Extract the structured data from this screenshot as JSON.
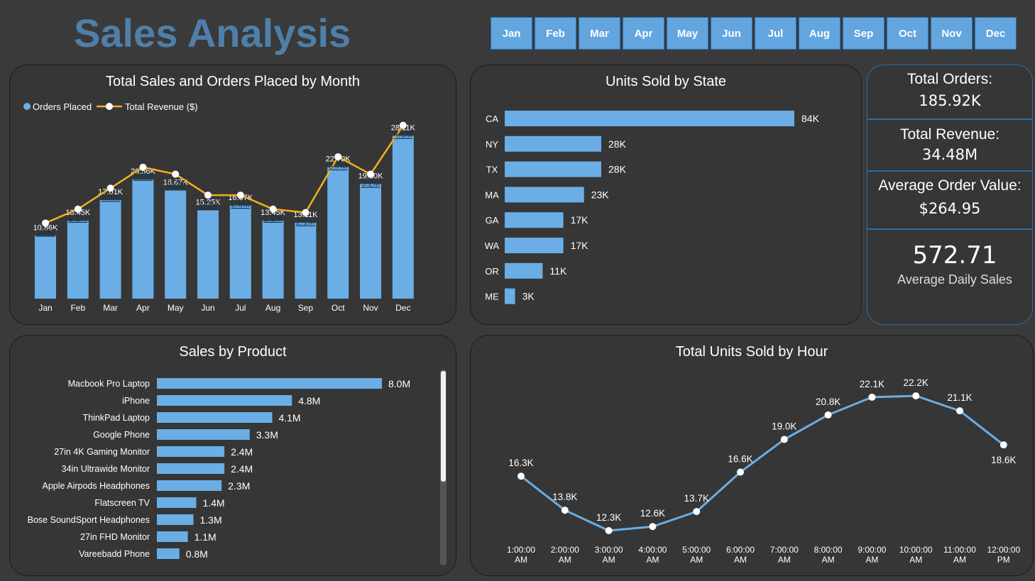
{
  "header": {
    "title": "Sales Analysis",
    "months": [
      "Jan",
      "Feb",
      "Mar",
      "Apr",
      "May",
      "Jun",
      "Jul",
      "Aug",
      "Sep",
      "Oct",
      "Nov",
      "Dec"
    ]
  },
  "colors": {
    "bar": "#6aaee5",
    "line": "#f2b01e",
    "title": "#4f7fa9",
    "hour_line": "#6aaee5"
  },
  "kpis": {
    "total_orders_label": "Total Orders:",
    "total_orders_value": "185.92K",
    "total_revenue_label": "Total Revenue:",
    "total_revenue_value": "34.48M",
    "aov_label": "Average Order Value:",
    "aov_value": "$264.95",
    "daily_value": "572.71",
    "daily_label": "Average Daily Sales"
  },
  "chart_data": [
    {
      "id": "monthly",
      "type": "bar",
      "title": "Total Sales and Orders Placed by Month",
      "legend": [
        "Orders Placed",
        "Total Revenue ($)"
      ],
      "legend_placement": "top-left",
      "categories": [
        "Jan",
        "Feb",
        "Mar",
        "Apr",
        "May",
        "Jun",
        "Jul",
        "Aug",
        "Sep",
        "Oct",
        "Nov",
        "Dec"
      ],
      "series": [
        {
          "name": "Orders Placed",
          "type": "bar",
          "values": [
            10.86,
            13.45,
            17.01,
            20.56,
            18.67,
            15.25,
            16.07,
            13.45,
            13.11,
            22.7,
            19.8,
            28.11
          ],
          "labels": [
            "10.86K",
            "13.45K",
            "17.01K",
            "20.56K",
            "18.67K",
            "15.25K",
            "16.07K",
            "13.45K",
            "13.11K",
            "22.70K",
            "19.80K",
            "28.11K"
          ]
        },
        {
          "name": "Total Revenue ($)",
          "type": "line",
          "values": [
            1.8,
            2.2,
            2.8,
            3.4,
            3.2,
            2.6,
            2.6,
            2.2,
            2.1,
            3.7,
            3.2,
            4.6
          ],
          "labels": [
            "1.8M",
            "2.2M",
            "2.8M",
            "3.4M",
            "3.2M",
            "2.6M",
            "2.6M",
            "2.2M",
            "2.1M",
            "3.7M",
            "3.2M",
            "4.6M"
          ]
        }
      ]
    },
    {
      "id": "state",
      "type": "bar",
      "orientation": "horizontal",
      "title": "Units Sold by State",
      "categories": [
        "CA",
        "NY",
        "TX",
        "MA",
        "GA",
        "WA",
        "OR",
        "ME"
      ],
      "values": [
        84,
        28,
        28,
        23,
        17,
        17,
        11,
        3
      ],
      "labels": [
        "84K",
        "28K",
        "28K",
        "23K",
        "17K",
        "17K",
        "11K",
        "3K"
      ]
    },
    {
      "id": "product",
      "type": "bar",
      "orientation": "horizontal",
      "title": "Sales by Product",
      "categories": [
        "Macbook Pro Laptop",
        "iPhone",
        "ThinkPad Laptop",
        "Google Phone",
        "27in 4K Gaming Monitor",
        "34in Ultrawide Monitor",
        "Apple Airpods Headphones",
        "Flatscreen TV",
        "Bose SoundSport Headphones",
        "27in FHD Monitor",
        "Vareebadd Phone"
      ],
      "values": [
        8.0,
        4.8,
        4.1,
        3.3,
        2.4,
        2.4,
        2.3,
        1.4,
        1.3,
        1.1,
        0.8
      ],
      "labels": [
        "8.0M",
        "4.8M",
        "4.1M",
        "3.3M",
        "2.4M",
        "2.4M",
        "2.3M",
        "1.4M",
        "1.3M",
        "1.1M",
        "0.8M"
      ]
    },
    {
      "id": "hour",
      "type": "line",
      "title": "Total Units Sold by Hour",
      "x": [
        [
          "1:00:00",
          "AM"
        ],
        [
          "2:00:00",
          "AM"
        ],
        [
          "3:00:00",
          "AM"
        ],
        [
          "4:00:00",
          "AM"
        ],
        [
          "5:00:00",
          "AM"
        ],
        [
          "6:00:00",
          "AM"
        ],
        [
          "7:00:00",
          "AM"
        ],
        [
          "8:00:00",
          "AM"
        ],
        [
          "9:00:00",
          "AM"
        ],
        [
          "10:00:00",
          "AM"
        ],
        [
          "11:00:00",
          "AM"
        ],
        [
          "12:00:00",
          "PM"
        ]
      ],
      "values": [
        16.3,
        13.8,
        12.3,
        12.6,
        13.7,
        16.6,
        19.0,
        20.8,
        22.1,
        22.2,
        21.1,
        18.6
      ],
      "labels": [
        "16.3K",
        "13.8K",
        "12.3K",
        "12.6K",
        "13.7K",
        "16.6K",
        "19.0K",
        "20.8K",
        "22.1K",
        "22.2K",
        "21.1K",
        "18.6K"
      ]
    }
  ]
}
